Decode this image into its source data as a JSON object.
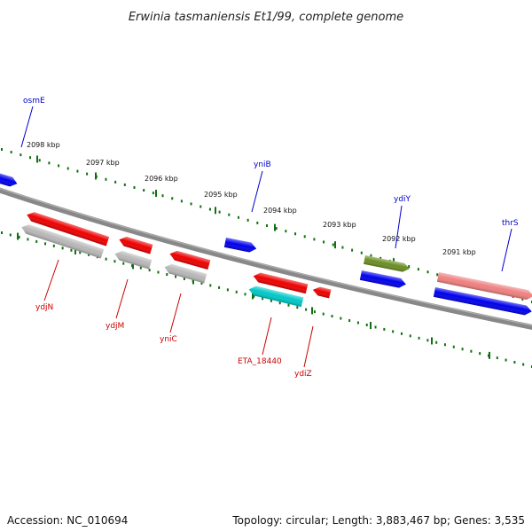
{
  "title": "Erwinia tasmaniensis Et1/99, complete genome",
  "footer": {
    "accession": "Accession: NC_010694",
    "summary": "Topology: circular; Length: 3,883,467 bp; Genes: 3,535"
  },
  "colors": {
    "backbone": "#888888",
    "ticks": "#107010",
    "forward_label": "#0000cc",
    "reverse_label": "#cc0000"
  },
  "ticks": [
    {
      "kbp": 2098,
      "label": "2098 kbp"
    },
    {
      "kbp": 2097,
      "label": "2097 kbp"
    },
    {
      "kbp": 2096,
      "label": "2096 kbp"
    },
    {
      "kbp": 2095,
      "label": "2095 kbp"
    },
    {
      "kbp": 2094,
      "label": "2094 kbp"
    },
    {
      "kbp": 2093,
      "label": "2093 kbp"
    },
    {
      "kbp": 2092,
      "label": "2092 kbp"
    },
    {
      "kbp": 2091,
      "label": "2091 kbp"
    }
  ],
  "genes": [
    {
      "id": "osmE",
      "label": "osmE",
      "strand": "forward",
      "color": "#0000ee"
    },
    {
      "id": "yniB",
      "label": "yniB",
      "strand": "forward",
      "color": "#0000ee"
    },
    {
      "id": "ydiY",
      "label": "ydiY",
      "strand": "forward",
      "color": "#0000ee"
    },
    {
      "id": "ydiY-rna",
      "label": "",
      "strand": "forward",
      "color": "#6b8e23"
    },
    {
      "id": "thrS",
      "label": "thrS",
      "strand": "forward",
      "color": "#0000ee"
    },
    {
      "id": "thrS-rna",
      "label": "",
      "strand": "forward",
      "color": "#f08080"
    },
    {
      "id": "ydjN",
      "label": "ydjN",
      "strand": "reverse",
      "color": "#ee0000"
    },
    {
      "id": "ydjN-rna",
      "label": "",
      "strand": "reverse",
      "color": "#b8b8b8"
    },
    {
      "id": "ydjM",
      "label": "ydjM",
      "strand": "reverse",
      "color": "#ee0000"
    },
    {
      "id": "ydjM-rna",
      "label": "",
      "strand": "reverse",
      "color": "#b8b8b8"
    },
    {
      "id": "yniC",
      "label": "yniC",
      "strand": "reverse",
      "color": "#ee0000"
    },
    {
      "id": "yniC-rna",
      "label": "",
      "strand": "reverse",
      "color": "#b8b8b8"
    },
    {
      "id": "ETA_18440",
      "label": "ETA_18440",
      "strand": "reverse",
      "color": "#ee0000"
    },
    {
      "id": "ETA_18440-rna",
      "label": "",
      "strand": "reverse",
      "color": "#00c8c8"
    },
    {
      "id": "ydiZ",
      "label": "ydiZ",
      "strand": "reverse",
      "color": "#ee0000"
    }
  ]
}
